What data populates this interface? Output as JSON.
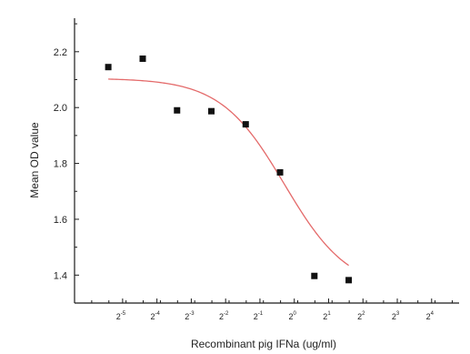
{
  "chart_data": {
    "type": "scatter",
    "xlabel": "Recombinant pig IFNa (ug/ml)",
    "ylabel": "Mean OD value",
    "ylim": [
      1.3,
      2.32
    ],
    "xlim_log2": [
      -6.4,
      4.8
    ],
    "x_tick_labels": [
      {
        "base": "2",
        "exp": "-5",
        "log2": -5
      },
      {
        "base": "2",
        "exp": "-4",
        "log2": -4
      },
      {
        "base": "2",
        "exp": "-3",
        "log2": -3
      },
      {
        "base": "2",
        "exp": "-2",
        "log2": -2
      },
      {
        "base": "2",
        "exp": "-1",
        "log2": -1
      },
      {
        "base": "2",
        "exp": "0",
        "log2": 0
      },
      {
        "base": "2",
        "exp": "1",
        "log2": 1
      },
      {
        "base": "2",
        "exp": "2",
        "log2": 2
      },
      {
        "base": "2",
        "exp": "3",
        "log2": 3
      },
      {
        "base": "2",
        "exp": "4",
        "log2": 4
      }
    ],
    "y_ticks": [
      {
        "value": 1.4,
        "label": "1.4"
      },
      {
        "value": 1.6,
        "label": "1.6"
      },
      {
        "value": 1.8,
        "label": "1.8"
      },
      {
        "value": 2.0,
        "label": "2.0"
      },
      {
        "value": 2.2,
        "label": "2.2"
      }
    ],
    "points": [
      {
        "x": 0.0234,
        "y": 2.145
      },
      {
        "x": 0.0469,
        "y": 2.175
      },
      {
        "x": 0.0938,
        "y": 1.99
      },
      {
        "x": 0.1875,
        "y": 1.987
      },
      {
        "x": 0.375,
        "y": 1.94
      },
      {
        "x": 0.75,
        "y": 1.768
      },
      {
        "x": 1.5,
        "y": 1.397
      },
      {
        "x": 3.0,
        "y": 1.382
      }
    ],
    "fit": {
      "name": "",
      "color": "#e46a6a",
      "top": 2.105,
      "bottom": 1.345,
      "ec50": 0.82,
      "hill": 1.55,
      "x_from": 0.0234,
      "x_to": 3.0
    },
    "marker_color": "#111111",
    "grid": false,
    "legend": "none"
  }
}
